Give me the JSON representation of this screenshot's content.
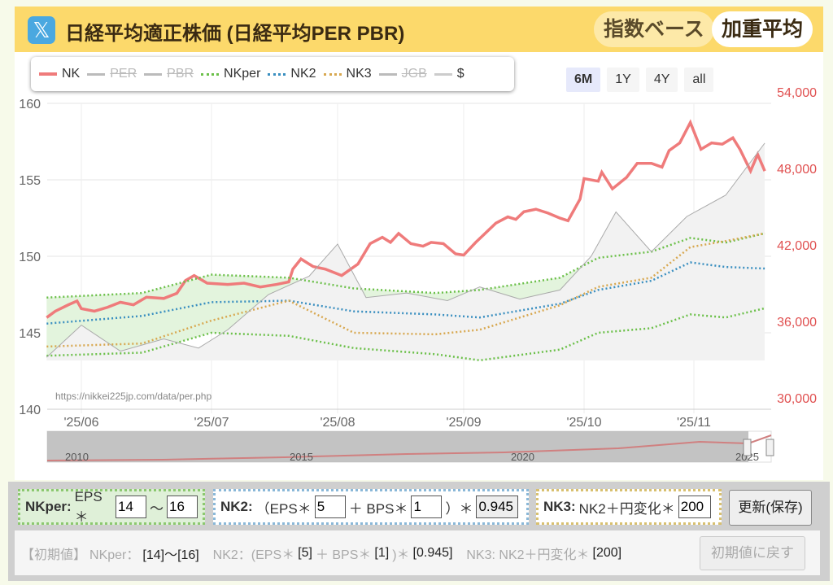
{
  "header": {
    "title": "日経平均適正株価 (日経平均PER PBR)",
    "logo_icon": "x-logo-icon",
    "btn_index": "指数ベース",
    "btn_weighted": "加重平均"
  },
  "legend": [
    {
      "label": "NK",
      "color": "#ef7b7b",
      "active": true,
      "style": "solid"
    },
    {
      "label": "PER",
      "color": "#bbbbbb",
      "active": false,
      "style": "solid"
    },
    {
      "label": "PBR",
      "color": "#bbbbbb",
      "active": false,
      "style": "solid"
    },
    {
      "label": "NKper",
      "color": "#6cc04a",
      "active": true,
      "style": "dotted"
    },
    {
      "label": "NK2",
      "color": "#3a8fc0",
      "active": true,
      "style": "dotted"
    },
    {
      "label": "NK3",
      "color": "#d8a850",
      "active": true,
      "style": "dotted"
    },
    {
      "label": "JGB",
      "color": "#bbbbbb",
      "active": false,
      "style": "solid"
    },
    {
      "label": "$",
      "color": "#cccccc",
      "active": true,
      "style": "solid"
    }
  ],
  "ranges": [
    "6M",
    "1Y",
    "4Y",
    "all"
  ],
  "range_selected": "6M",
  "watermark": "https://nikkei225jp.com/data/per.php",
  "navigator": {
    "labels": [
      "2010",
      "2015",
      "2020",
      "2025"
    ]
  },
  "chart_data": {
    "type": "line",
    "x_ticks": [
      {
        "label": "'25/06",
        "date": "2025-06-01"
      },
      {
        "label": "'25/07",
        "date": "2025-07-01"
      },
      {
        "label": "'25/08",
        "date": "2025-08-01"
      },
      {
        "label": "'25/09",
        "date": "2025-09-01"
      },
      {
        "label": "'25/10",
        "date": "2025-10-01"
      },
      {
        "label": "'25/11",
        "date": "2025-11-01"
      }
    ],
    "y_left": {
      "ylim": [
        140,
        160
      ],
      "ticks": [
        "140",
        "145",
        "150",
        "155",
        "160"
      ]
    },
    "y_right": {
      "ylim": [
        30000,
        54000
      ],
      "ticks": [
        "30,000",
        "36,000",
        "42,000",
        "48,000",
        "54,000"
      ],
      "color": "#e05050"
    },
    "grid": true,
    "series": [
      {
        "name": "NK",
        "axis": "right",
        "color": "#ef7b7b",
        "points": [
          [
            "2025-05-24",
            36300
          ],
          [
            "2025-05-26",
            36800
          ],
          [
            "2025-05-29",
            37300
          ],
          [
            "2025-05-31",
            37600
          ],
          [
            "2025-06-01",
            37000
          ],
          [
            "2025-06-04",
            36800
          ],
          [
            "2025-06-07",
            37100
          ],
          [
            "2025-06-10",
            37500
          ],
          [
            "2025-06-13",
            37300
          ],
          [
            "2025-06-16",
            37900
          ],
          [
            "2025-06-20",
            37800
          ],
          [
            "2025-06-23",
            38200
          ],
          [
            "2025-06-25",
            39200
          ],
          [
            "2025-06-27",
            39600
          ],
          [
            "2025-06-30",
            39000
          ],
          [
            "2025-07-05",
            38900
          ],
          [
            "2025-07-09",
            39000
          ],
          [
            "2025-07-13",
            38700
          ],
          [
            "2025-07-17",
            38900
          ],
          [
            "2025-07-20",
            39100
          ],
          [
            "2025-07-21",
            40100
          ],
          [
            "2025-07-23",
            40900
          ],
          [
            "2025-07-26",
            40300
          ],
          [
            "2025-07-29",
            40100
          ],
          [
            "2025-08-02",
            39600
          ],
          [
            "2025-08-06",
            40500
          ],
          [
            "2025-08-09",
            42100
          ],
          [
            "2025-08-12",
            42600
          ],
          [
            "2025-08-14",
            42200
          ],
          [
            "2025-08-16",
            42900
          ],
          [
            "2025-08-19",
            42100
          ],
          [
            "2025-08-22",
            41900
          ],
          [
            "2025-08-24",
            42200
          ],
          [
            "2025-08-27",
            42100
          ],
          [
            "2025-08-30",
            41300
          ],
          [
            "2025-09-01",
            41200
          ],
          [
            "2025-09-04",
            42200
          ],
          [
            "2025-09-06",
            42800
          ],
          [
            "2025-09-09",
            43700
          ],
          [
            "2025-09-12",
            44200
          ],
          [
            "2025-09-14",
            44000
          ],
          [
            "2025-09-16",
            44600
          ],
          [
            "2025-09-19",
            44800
          ],
          [
            "2025-09-22",
            44500
          ],
          [
            "2025-09-25",
            44100
          ],
          [
            "2025-09-27",
            43900
          ],
          [
            "2025-09-30",
            45600
          ],
          [
            "2025-10-01",
            47200
          ],
          [
            "2025-10-05",
            47000
          ],
          [
            "2025-10-06",
            47700
          ],
          [
            "2025-10-09",
            46400
          ],
          [
            "2025-10-13",
            47300
          ],
          [
            "2025-10-16",
            48400
          ],
          [
            "2025-10-20",
            48400
          ],
          [
            "2025-10-23",
            48100
          ],
          [
            "2025-10-25",
            49400
          ],
          [
            "2025-10-28",
            50000
          ],
          [
            "2025-10-31",
            51600
          ],
          [
            "2025-11-03",
            49500
          ],
          [
            "2025-11-06",
            50000
          ],
          [
            "2025-11-09",
            49900
          ],
          [
            "2025-11-12",
            50400
          ],
          [
            "2025-11-14",
            49500
          ],
          [
            "2025-11-17",
            47800
          ],
          [
            "2025-11-19",
            49100
          ],
          [
            "2025-11-21",
            47800
          ]
        ]
      },
      {
        "name": "NKper-upper",
        "axis": "left",
        "color": "#6cc04a",
        "points": [
          [
            "2025-05-24",
            147.3
          ],
          [
            "2025-06-15",
            147.6
          ],
          [
            "2025-07-01",
            148.8
          ],
          [
            "2025-07-20",
            148.6
          ],
          [
            "2025-08-05",
            147.9
          ],
          [
            "2025-08-25",
            147.6
          ],
          [
            "2025-09-05",
            147.8
          ],
          [
            "2025-09-25",
            148.6
          ],
          [
            "2025-10-05",
            149.9
          ],
          [
            "2025-10-20",
            150.3
          ],
          [
            "2025-10-31",
            151.2
          ],
          [
            "2025-11-10",
            150.9
          ],
          [
            "2025-11-21",
            151.5
          ]
        ]
      },
      {
        "name": "NKper-lower",
        "axis": "left",
        "color": "#6cc04a",
        "points": [
          [
            "2025-05-24",
            143.5
          ],
          [
            "2025-06-15",
            143.7
          ],
          [
            "2025-07-01",
            145.0
          ],
          [
            "2025-07-20",
            144.8
          ],
          [
            "2025-08-05",
            144.0
          ],
          [
            "2025-08-25",
            143.6
          ],
          [
            "2025-09-05",
            143.2
          ],
          [
            "2025-09-25",
            143.9
          ],
          [
            "2025-10-05",
            145.0
          ],
          [
            "2025-10-20",
            145.3
          ],
          [
            "2025-10-31",
            146.2
          ],
          [
            "2025-11-10",
            146.0
          ],
          [
            "2025-11-21",
            146.6
          ]
        ]
      },
      {
        "name": "NK2",
        "axis": "left",
        "color": "#3a8fc0",
        "points": [
          [
            "2025-05-24",
            145.6
          ],
          [
            "2025-06-15",
            146.1
          ],
          [
            "2025-07-01",
            147.0
          ],
          [
            "2025-07-20",
            147.1
          ],
          [
            "2025-08-05",
            146.4
          ],
          [
            "2025-08-25",
            146.2
          ],
          [
            "2025-09-05",
            146.0
          ],
          [
            "2025-09-25",
            146.9
          ],
          [
            "2025-10-05",
            147.8
          ],
          [
            "2025-10-20",
            148.4
          ],
          [
            "2025-10-31",
            149.6
          ],
          [
            "2025-11-10",
            149.3
          ],
          [
            "2025-11-21",
            149.2
          ]
        ]
      },
      {
        "name": "NK3",
        "axis": "left",
        "color": "#d8a850",
        "points": [
          [
            "2025-05-24",
            144.1
          ],
          [
            "2025-06-15",
            144.3
          ],
          [
            "2025-07-01",
            145.8
          ],
          [
            "2025-07-20",
            147.1
          ],
          [
            "2025-08-05",
            145.0
          ],
          [
            "2025-08-25",
            144.9
          ],
          [
            "2025-09-05",
            145.2
          ],
          [
            "2025-09-25",
            146.8
          ],
          [
            "2025-10-05",
            148.0
          ],
          [
            "2025-10-20",
            148.6
          ],
          [
            "2025-10-31",
            150.6
          ],
          [
            "2025-11-10",
            151.0
          ],
          [
            "2025-11-21",
            151.5
          ]
        ]
      },
      {
        "name": "$",
        "axis": "left",
        "color": "#aaaaaa",
        "points": [
          [
            "2025-05-24",
            143.4
          ],
          [
            "2025-06-01",
            145.5
          ],
          [
            "2025-06-10",
            143.8
          ],
          [
            "2025-06-20",
            144.6
          ],
          [
            "2025-06-28",
            144.0
          ],
          [
            "2025-07-05",
            145.2
          ],
          [
            "2025-07-15",
            147.5
          ],
          [
            "2025-07-25",
            148.7
          ],
          [
            "2025-08-01",
            150.8
          ],
          [
            "2025-08-08",
            147.3
          ],
          [
            "2025-08-18",
            147.6
          ],
          [
            "2025-08-28",
            147.1
          ],
          [
            "2025-09-05",
            148.0
          ],
          [
            "2025-09-15",
            147.2
          ],
          [
            "2025-09-25",
            147.8
          ],
          [
            "2025-10-03",
            150.0
          ],
          [
            "2025-10-10",
            152.9
          ],
          [
            "2025-10-20",
            150.3
          ],
          [
            "2025-10-30",
            152.6
          ],
          [
            "2025-11-10",
            154.0
          ],
          [
            "2025-11-21",
            157.4
          ]
        ]
      }
    ]
  },
  "controls": {
    "nkper_label": "NKper:",
    "nkper_text": "EPS＊",
    "nkper_min": "14",
    "tilde": "〜",
    "nkper_max": "16",
    "nk2_label": "NK2:",
    "nk2_text1": "（EPS＊",
    "nk2_eps": "5",
    "nk2_text2": "＋ BPS＊",
    "nk2_bps": "1",
    "nk2_text3": "）＊",
    "nk2_coef": "0.945",
    "nk3_label": "NK3:",
    "nk3_text": "NK2＋円変化＊",
    "nk3_coef": "200",
    "update_button": "更新(保存)"
  },
  "defaults": {
    "label": "【初期値】",
    "nkper": "NKper：",
    "nkper_v": "[14]〜[16]",
    "nk2": "NK2：(EPS＊",
    "nk2_eps": "[5]",
    "nk2_mid": "＋ BPS＊",
    "nk2_bps": "[1]",
    "nk2_mid2": ")＊",
    "nk2_coef": "[0.945]",
    "nk3": "NK3: NK2＋円変化＊",
    "nk3_coef": "[200]",
    "reset_button": "初期値に戻す"
  }
}
